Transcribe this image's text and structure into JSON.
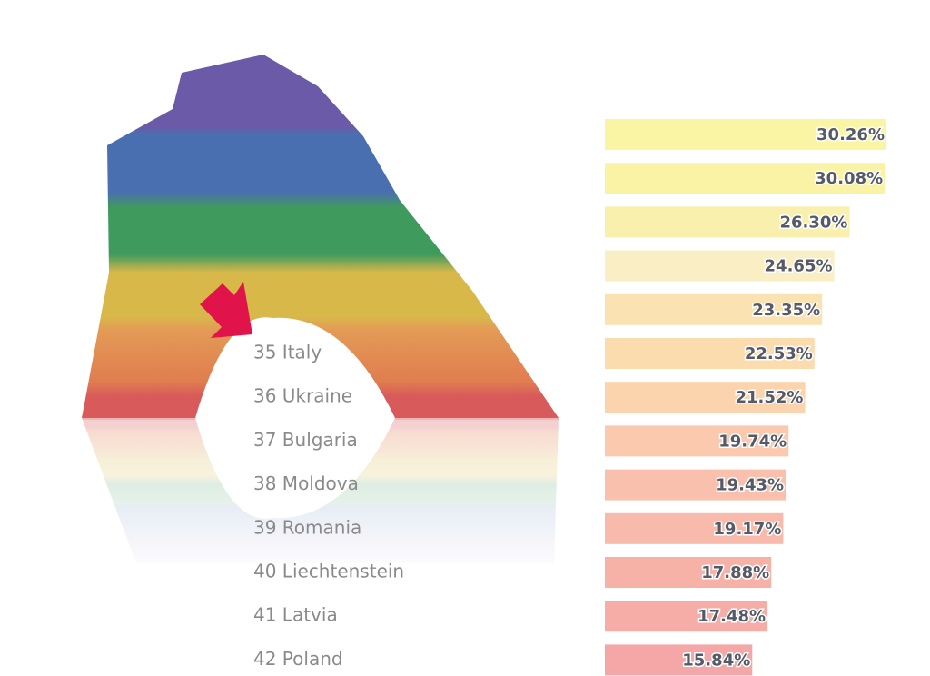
{
  "chart_data": {
    "type": "bar",
    "orientation": "horizontal",
    "categories": [
      null,
      null,
      null,
      null,
      null,
      "35 Italy",
      "36 Ukraine",
      "37 Bulgaria",
      "38 Moldova",
      "39 Romania",
      "40 Liechtenstein",
      "41 Latvia",
      "42 Poland"
    ],
    "values": [
      30.26,
      30.08,
      26.3,
      24.65,
      23.35,
      22.53,
      21.52,
      19.74,
      19.43,
      19.17,
      17.88,
      17.48,
      15.84
    ],
    "value_labels": [
      "30.26%",
      "30.08%",
      "26.30%",
      "24.65%",
      "23.35%",
      "22.53%",
      "21.52%",
      "19.74%",
      "19.43%",
      "19.17%",
      "17.88%",
      "17.48%",
      "15.84%"
    ],
    "colors": [
      "#faf5a4",
      "#faf3a6",
      "#faf0ae",
      "#f9eec4",
      "#fbe2b2",
      "#fbdcae",
      "#fbd3ac",
      "#fac9ae",
      "#f9c1ad",
      "#f8bbab",
      "#f7b2a8",
      "#f6aca7",
      "#f5a6a6"
    ]
  }
}
